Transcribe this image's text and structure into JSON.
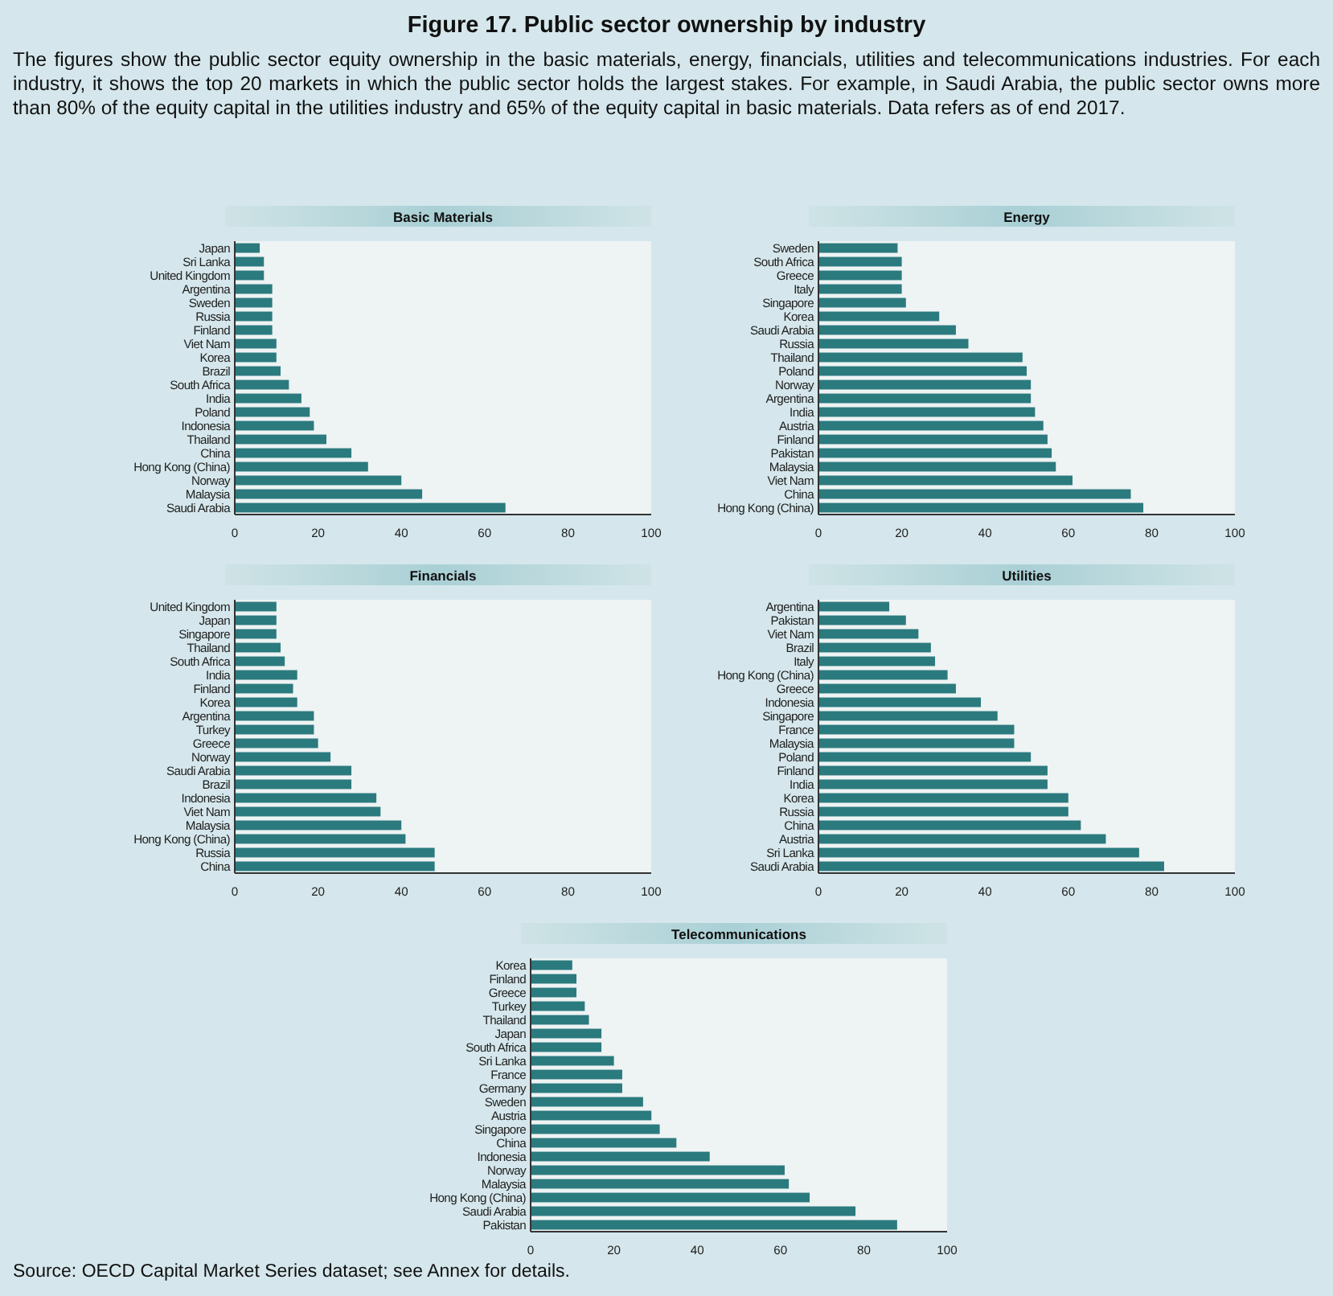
{
  "chart_data": [
    {
      "type": "other",
      "title": "Figure 17. Public sector ownership by industry",
      "subtitle": "The figures show the public sector equity ownership in the basic materials, energy, financials, utilities and telecommunications industries. For each industry, it shows the top 20 markets in which the public sector holds the largest stakes. For example, in Saudi Arabia, the public sector owns more than 80% of the equity capital in the utilities industry and 65% of the equity capital in basic materials. Data refers as of end 2017.",
      "annotations": [
        "Source: OECD Capital Market Series dataset; see Annex for details."
      ]
    },
    {
      "type": "bar",
      "orientation": "horizontal",
      "title": "Basic Materials",
      "color": "#2b7a7e",
      "xlim": [
        0,
        100
      ],
      "xticks": [
        0,
        20,
        40,
        60,
        80,
        100
      ],
      "categories": [
        "Japan",
        "Sri Lanka",
        "United Kingdom",
        "Argentina",
        "Sweden",
        "Russia",
        "Finland",
        "Viet Nam",
        "Korea",
        "Brazil",
        "South Africa",
        "India",
        "Poland",
        "Indonesia",
        "Thailand",
        "China",
        "Hong Kong (China)",
        "Norway",
        "Malaysia",
        "Saudi Arabia"
      ],
      "values": [
        6,
        7,
        7,
        9,
        9,
        9,
        9,
        10,
        10,
        11,
        13,
        16,
        18,
        19,
        22,
        28,
        32,
        40,
        45,
        65
      ]
    },
    {
      "type": "bar",
      "orientation": "horizontal",
      "title": "Energy",
      "color": "#2b7a7e",
      "xlim": [
        0,
        100
      ],
      "xticks": [
        0,
        20,
        40,
        60,
        80,
        100
      ],
      "categories": [
        "Sweden",
        "South Africa",
        "Greece",
        "Italy",
        "Singapore",
        "Korea",
        "Saudi Arabia",
        "Russia",
        "Thailand",
        "Poland",
        "Norway",
        "Argentina",
        "India",
        "Austria",
        "Finland",
        "Pakistan",
        "Malaysia",
        "Viet Nam",
        "China",
        "Hong Kong (China)"
      ],
      "values": [
        19,
        20,
        20,
        20,
        21,
        29,
        33,
        36,
        49,
        50,
        51,
        51,
        52,
        54,
        55,
        56,
        57,
        61,
        75,
        78
      ]
    },
    {
      "type": "bar",
      "orientation": "horizontal",
      "title": "Financials",
      "color": "#2b7a7e",
      "xlim": [
        0,
        100
      ],
      "xticks": [
        0,
        20,
        40,
        60,
        80,
        100
      ],
      "categories": [
        "United Kingdom",
        "Japan",
        "Singapore",
        "Thailand",
        "South Africa",
        "India",
        "Finland",
        "Korea",
        "Argentina",
        "Turkey",
        "Greece",
        "Norway",
        "Saudi Arabia",
        "Brazil",
        "Indonesia",
        "Viet Nam",
        "Malaysia",
        "Hong Kong (China)",
        "Russia",
        "China"
      ],
      "values": [
        10,
        10,
        10,
        11,
        12,
        15,
        14,
        15,
        19,
        19,
        20,
        23,
        28,
        28,
        34,
        35,
        40,
        41,
        48,
        48
      ]
    },
    {
      "type": "bar",
      "orientation": "horizontal",
      "title": "Utilities",
      "color": "#2b7a7e",
      "xlim": [
        0,
        100
      ],
      "xticks": [
        0,
        20,
        40,
        60,
        80,
        100
      ],
      "categories": [
        "Argentina",
        "Pakistan",
        "Viet Nam",
        "Brazil",
        "Italy",
        "Hong Kong (China)",
        "Greece",
        "Indonesia",
        "Singapore",
        "France",
        "Malaysia",
        "Poland",
        "Finland",
        "India",
        "Korea",
        "Russia",
        "China",
        "Austria",
        "Sri Lanka",
        "Saudi Arabia"
      ],
      "values": [
        17,
        21,
        24,
        27,
        28,
        31,
        33,
        39,
        43,
        47,
        47,
        51,
        55,
        55,
        60,
        60,
        63,
        69,
        77,
        83
      ]
    },
    {
      "type": "bar",
      "orientation": "horizontal",
      "title": "Telecommunications",
      "color": "#2b7a7e",
      "xlim": [
        0,
        100
      ],
      "xticks": [
        0,
        20,
        40,
        60,
        80,
        100
      ],
      "categories": [
        "Korea",
        "Finland",
        "Greece",
        "Turkey",
        "Thailand",
        "Japan",
        "South Africa",
        "Sri Lanka",
        "France",
        "Germany",
        "Sweden",
        "Austria",
        "Singapore",
        "China",
        "Indonesia",
        "Norway",
        "Malaysia",
        "Hong Kong (China)",
        "Saudi Arabia",
        "Pakistan"
      ],
      "values": [
        10,
        11,
        11,
        13,
        14,
        17,
        17,
        20,
        22,
        22,
        27,
        29,
        31,
        35,
        43,
        61,
        62,
        67,
        78,
        88
      ]
    }
  ]
}
